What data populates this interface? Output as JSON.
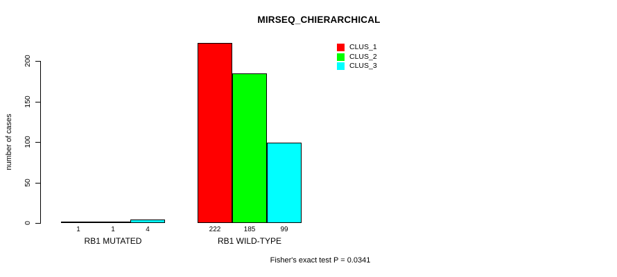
{
  "chart_data": {
    "type": "bar",
    "title": "MIRSEQ_CHIERARCHICAL",
    "ylabel": "number of cases",
    "xlabel": "",
    "categories": [
      "RB1 MUTATED",
      "RB1 WILD-TYPE"
    ],
    "series": [
      {
        "name": "CLUS_1",
        "color": "#ff0000",
        "values": [
          1,
          222
        ]
      },
      {
        "name": "CLUS_2",
        "color": "#00ff00",
        "values": [
          1,
          185
        ]
      },
      {
        "name": "CLUS_3",
        "color": "#00ffff",
        "values": [
          4,
          99
        ]
      }
    ],
    "bar_value_labels": [
      [
        "1",
        "1",
        "4"
      ],
      [
        "222",
        "185",
        "99"
      ]
    ],
    "yticks": [
      0,
      50,
      100,
      150,
      200
    ],
    "ylim": [
      0,
      225
    ],
    "grid": false,
    "legend_position": "top-right",
    "legend_entries": [
      "CLUS_1",
      "CLUS_2",
      "CLUS_3"
    ],
    "bar_border_color": "#000000",
    "axis_color": "#000000",
    "background_color": "#ffffff",
    "annotation": "Fisher's exact test P = 0.0341"
  }
}
